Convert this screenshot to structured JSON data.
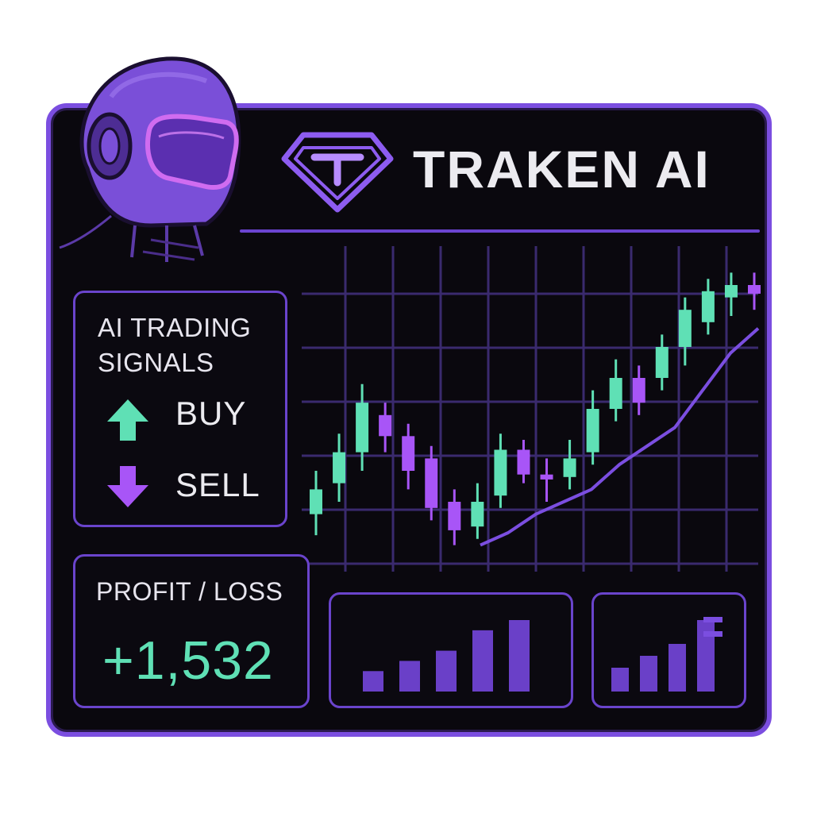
{
  "brand": {
    "name": "TRAKEN AI",
    "colors": {
      "accent": "#7b4ee0",
      "buy": "#5fe0b5",
      "sell": "#a855f7",
      "background": "#0a080e"
    }
  },
  "signals": {
    "title": "AI TRADING SIGNALS",
    "buy_label": "BUY",
    "sell_label": "SELL",
    "buy_icon": "up-arrow-icon",
    "sell_icon": "down-arrow-icon"
  },
  "profit_loss": {
    "label": "PROFIT / LOSS",
    "value": "+1,532"
  },
  "chart_data": {
    "type": "candlestick",
    "title": "",
    "candles": [
      {
        "dir": "up",
        "open": 4.0,
        "close": 6.0,
        "low": 2.3,
        "high": 7.5
      },
      {
        "dir": "up",
        "open": 6.5,
        "close": 9.0,
        "low": 5.0,
        "high": 10.5
      },
      {
        "dir": "up",
        "open": 9.0,
        "close": 13.0,
        "low": 7.5,
        "high": 14.5
      },
      {
        "dir": "down",
        "open": 12.0,
        "close": 10.3,
        "low": 9.0,
        "high": 13.0
      },
      {
        "dir": "down",
        "open": 10.3,
        "close": 7.5,
        "low": 6.0,
        "high": 11.3
      },
      {
        "dir": "down",
        "open": 8.5,
        "close": 4.5,
        "low": 3.5,
        "high": 9.5
      },
      {
        "dir": "down",
        "open": 5.0,
        "close": 2.7,
        "low": 1.5,
        "high": 6.0
      },
      {
        "dir": "up",
        "open": 3.0,
        "close": 5.0,
        "low": 2.0,
        "high": 6.5
      },
      {
        "dir": "up",
        "open": 5.5,
        "close": 9.2,
        "low": 4.5,
        "high": 10.5
      },
      {
        "dir": "down",
        "open": 9.2,
        "close": 7.2,
        "low": 6.5,
        "high": 10.0
      },
      {
        "dir": "down",
        "open": 7.2,
        "close": 6.8,
        "low": 5.0,
        "high": 8.5
      },
      {
        "dir": "up",
        "open": 7.0,
        "close": 8.5,
        "low": 6.0,
        "high": 10.0
      },
      {
        "dir": "up",
        "open": 9.0,
        "close": 12.5,
        "low": 8.0,
        "high": 14.0
      },
      {
        "dir": "up",
        "open": 12.5,
        "close": 15.0,
        "low": 11.5,
        "high": 16.5
      },
      {
        "dir": "down",
        "open": 15.0,
        "close": 13.0,
        "low": 12.0,
        "high": 16.0
      },
      {
        "dir": "up",
        "open": 15.0,
        "close": 17.5,
        "low": 14.0,
        "high": 18.5
      },
      {
        "dir": "up",
        "open": 17.5,
        "close": 20.5,
        "low": 16.0,
        "high": 21.5
      },
      {
        "dir": "up",
        "open": 19.5,
        "close": 22.0,
        "low": 18.5,
        "high": 23.0
      },
      {
        "dir": "up",
        "open": 21.5,
        "close": 22.5,
        "low": 20.0,
        "high": 23.5
      },
      {
        "dir": "down",
        "open": 22.5,
        "close": 21.8,
        "low": 20.5,
        "high": 23.5
      }
    ],
    "trend_line": [
      1.5,
      2.5,
      4.0,
      5.0,
      6.0,
      8.0,
      9.5,
      11.0,
      14.0,
      17.0,
      19.0
    ],
    "ylim": [
      0,
      25
    ],
    "grid": true
  },
  "mini_chart_1": {
    "values": [
      2,
      3,
      4,
      6,
      7
    ]
  },
  "mini_chart_2": {
    "values": [
      2,
      3,
      4,
      6
    ]
  }
}
